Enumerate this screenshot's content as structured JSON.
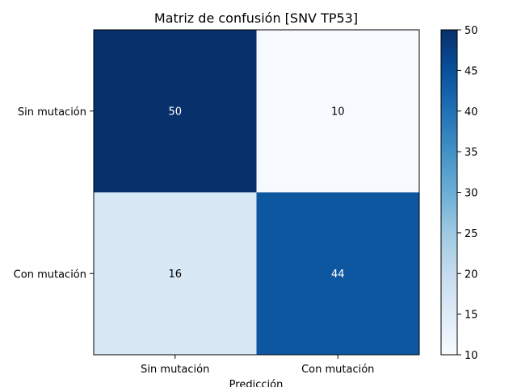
{
  "chart_data": {
    "type": "heatmap",
    "title": "Matriz de confusión [SNV TP53]",
    "xlabel": "Predicción",
    "ylabel": "",
    "x_categories": [
      "Sin mutación",
      "Con mutación"
    ],
    "y_categories": [
      "Sin mutación",
      "Con mutación"
    ],
    "values": [
      [
        50,
        10
      ],
      [
        16,
        44
      ]
    ],
    "colormap": "Blues",
    "color_range": [
      10,
      50
    ],
    "colorbar_ticks": [
      10,
      15,
      20,
      25,
      30,
      35,
      40,
      45,
      50
    ],
    "grid": false,
    "colors": {
      "low": "#f7fbff",
      "high": "#08306b",
      "text_dark": "#000000",
      "text_light": "#ffffff"
    }
  }
}
